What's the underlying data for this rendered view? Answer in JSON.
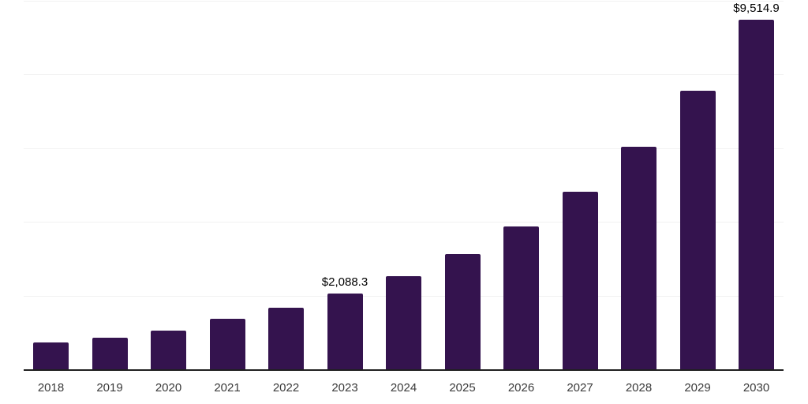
{
  "chart_data": {
    "type": "bar",
    "title": "",
    "xlabel": "",
    "ylabel": "",
    "categories": [
      "2018",
      "2019",
      "2020",
      "2021",
      "2022",
      "2023",
      "2024",
      "2025",
      "2026",
      "2027",
      "2028",
      "2029",
      "2030"
    ],
    "values": [
      760,
      880,
      1070,
      1390,
      1690,
      2088.3,
      2550,
      3150,
      3900,
      4850,
      6070,
      7590,
      9514.9
    ],
    "value_labels": [
      {
        "index": 5,
        "text": "$2,088.3"
      },
      {
        "index": 12,
        "text": "$9,514.9"
      }
    ],
    "ylim": [
      0,
      10000
    ],
    "gridline_step": 2000,
    "grid": "horizontal-only",
    "y_axis_ticks_visible": false,
    "legend": "none",
    "colors": {
      "bar": "#34134e",
      "gridline": "#f2f2f2",
      "axis_line": "#202020",
      "value_label": "#000000",
      "tick_label": "#3a3a3a",
      "background": "#ffffff"
    }
  }
}
